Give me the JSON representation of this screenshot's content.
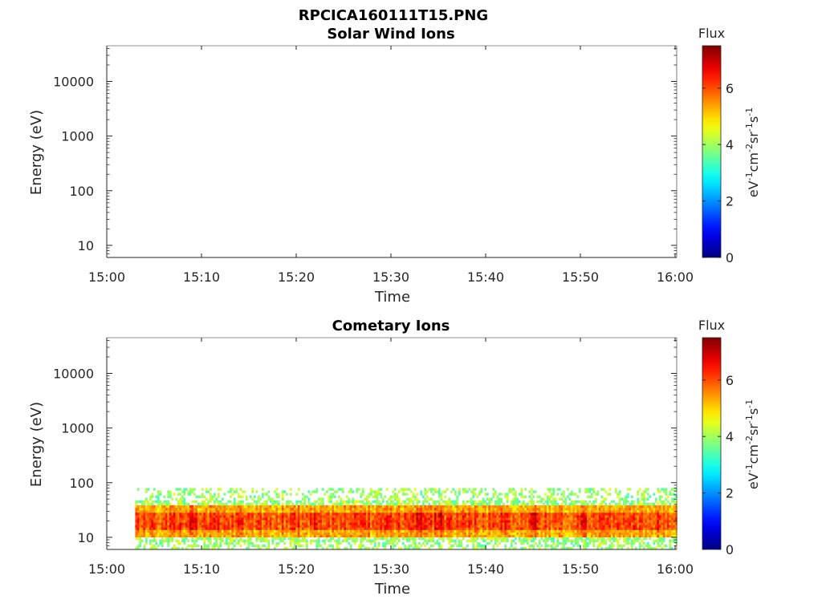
{
  "figure_title": "RPCICA160111T15.PNG",
  "colors": {
    "axis": "#262626",
    "background": "#ffffff"
  },
  "colormap": "jet",
  "chart_data": [
    {
      "type": "heatmap",
      "title": "Solar Wind Ions",
      "xlabel": "Time",
      "ylabel": "Energy (eV)",
      "x_ticks": [
        "15:00",
        "15:10",
        "15:20",
        "15:30",
        "15:40",
        "15:50",
        "16:00"
      ],
      "x_range": [
        "15:00",
        "16:00"
      ],
      "y_scale": "log",
      "y_ticks": [
        10,
        100,
        1000,
        10000
      ],
      "y_tick_labels": [
        "10",
        "100",
        "1000",
        "10000"
      ],
      "y_range": [
        6,
        45000
      ],
      "colorbar": {
        "title": "Flux",
        "label_parts": [
          {
            "t": "eV",
            "sup": false
          },
          {
            "t": "-1",
            "sup": true
          },
          {
            "t": "cm",
            "sup": false
          },
          {
            "t": "-2",
            "sup": true
          },
          {
            "t": "sr",
            "sup": false
          },
          {
            "t": "-1",
            "sup": true
          },
          {
            "t": "s",
            "sup": false
          },
          {
            "t": "-1",
            "sup": true
          }
        ],
        "ticks": [
          0,
          2,
          4,
          6
        ],
        "tick_labels": [
          "0",
          "2",
          "4",
          "6"
        ],
        "range": [
          0,
          7.5
        ]
      },
      "data_note": "",
      "bands": []
    },
    {
      "type": "heatmap",
      "title": "Cometary Ions",
      "xlabel": "Time",
      "ylabel": "Energy (eV)",
      "x_ticks": [
        "15:00",
        "15:10",
        "15:20",
        "15:30",
        "15:40",
        "15:50",
        "16:00"
      ],
      "x_range": [
        "15:00",
        "16:00"
      ],
      "y_scale": "log",
      "y_ticks": [
        10,
        100,
        1000,
        10000
      ],
      "y_tick_labels": [
        "10",
        "100",
        "1000",
        "10000"
      ],
      "y_range": [
        6,
        45000
      ],
      "colorbar": {
        "title": "Flux",
        "label_parts": [
          {
            "t": "eV",
            "sup": false
          },
          {
            "t": "-1",
            "sup": true
          },
          {
            "t": "cm",
            "sup": false
          },
          {
            "t": "-2",
            "sup": true
          },
          {
            "t": "sr",
            "sup": false
          },
          {
            "t": "-1",
            "sup": true
          },
          {
            "t": "s",
            "sup": false
          },
          {
            "t": "-1",
            "sup": true
          }
        ],
        "ticks": [
          0,
          2,
          4,
          6
        ],
        "tick_labels": [
          "0",
          "2",
          "4",
          "6"
        ],
        "range": [
          0,
          7.5
        ]
      },
      "bands": [
        {
          "time_start": "15:03",
          "time_end": "16:00",
          "energy_min": 6,
          "energy_max": 80,
          "flux_min": 3.5,
          "flux_max": 4.5
        },
        {
          "time_start": "15:03",
          "time_end": "16:00",
          "energy_min": 10,
          "energy_max": 40,
          "flux_min": 4.8,
          "flux_max": 6.0
        },
        {
          "time_start": "15:03",
          "time_end": "16:00",
          "energy_min": 14,
          "energy_max": 28,
          "flux_min": 5.5,
          "flux_max": 6.8
        }
      ],
      "peaks": [
        {
          "time": "15:09",
          "energy": 20,
          "flux": 6.8
        },
        {
          "time": "15:22",
          "energy": 18,
          "flux": 6.5
        },
        {
          "time": "15:33",
          "energy": 25,
          "flux": 7.0
        },
        {
          "time": "15:35",
          "energy": 20,
          "flux": 6.8
        },
        {
          "time": "15:45",
          "energy": 25,
          "flux": 7.0
        },
        {
          "time": "15:50",
          "energy": 18,
          "flux": 6.4
        }
      ]
    }
  ]
}
